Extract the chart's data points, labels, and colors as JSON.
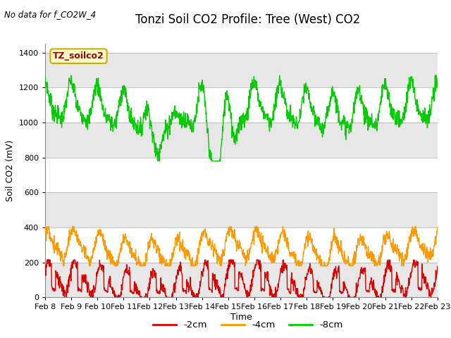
{
  "title": "Tonzi Soil CO2 Profile: Tree (West) CO2",
  "top_left_text": "No data for f_CO2W_4",
  "ylabel": "Soil CO2 (mV)",
  "xlabel": "Time",
  "legend_label": "TZ_soilco2",
  "ylim": [
    0,
    1450
  ],
  "yticks": [
    0,
    200,
    400,
    600,
    800,
    1000,
    1200,
    1400
  ],
  "date_labels": [
    "Feb 8",
    "Feb 9",
    "Feb 10",
    "Feb 11",
    "Feb 12",
    "Feb 13",
    "Feb 14",
    "Feb 15",
    "Feb 16",
    "Feb 17",
    "Feb 18",
    "Feb 19",
    "Feb 20",
    "Feb 21",
    "Feb 22",
    "Feb 23"
  ],
  "line_2cm_color": "#dd0000",
  "line_4cm_color": "#ff9900",
  "line_8cm_color": "#00cc00",
  "band_color": "#d8d8d8",
  "band_alpha": 0.6,
  "bg_color": "#ffffff",
  "legend_box_color": "#ffffcc",
  "legend_box_edge": "#ccaa00",
  "line_width": 1.0,
  "title_fontsize": 12,
  "axis_fontsize": 9,
  "tick_fontsize": 8
}
